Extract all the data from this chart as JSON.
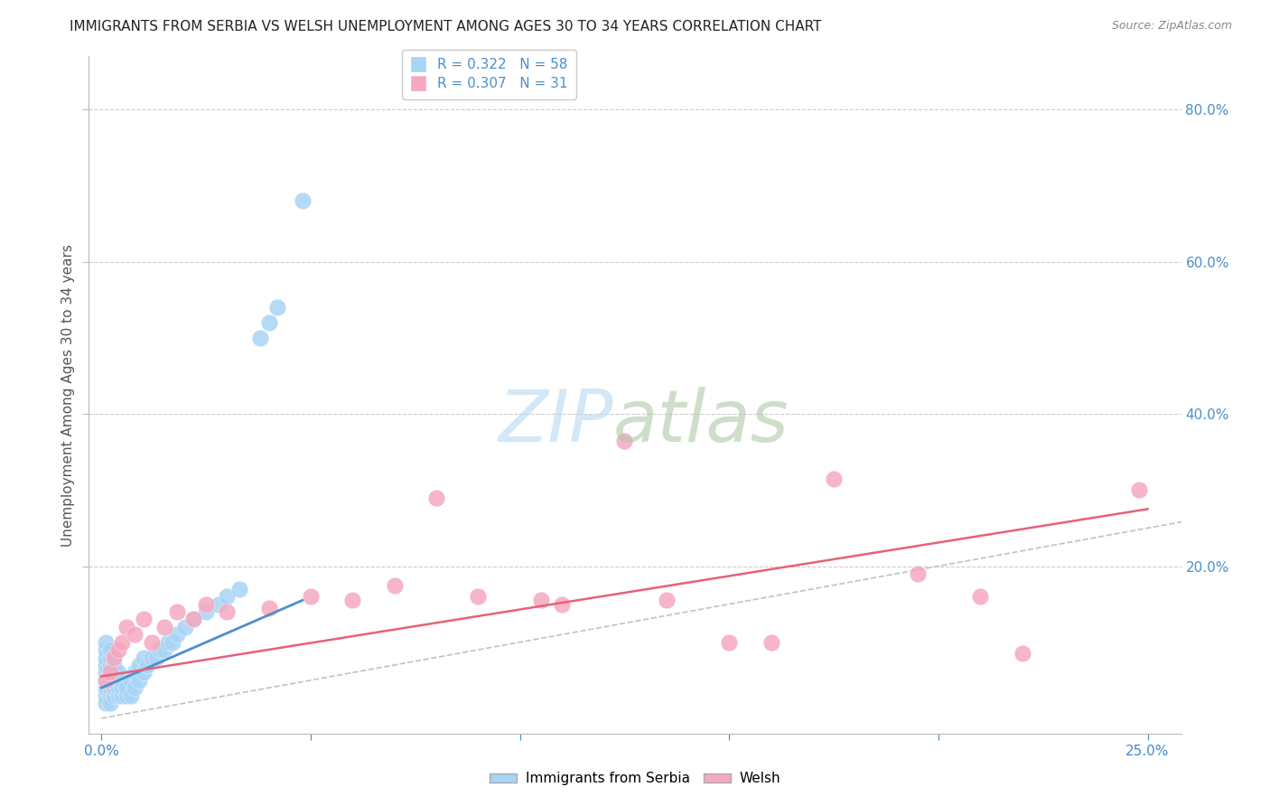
{
  "title": "IMMIGRANTS FROM SERBIA VS WELSH UNEMPLOYMENT AMONG AGES 30 TO 34 YEARS CORRELATION CHART",
  "source": "Source: ZipAtlas.com",
  "ylabel": "Unemployment Among Ages 30 to 34 years",
  "xlim": [
    0.0,
    0.25
  ],
  "ylim": [
    0.0,
    0.85
  ],
  "xticks": [
    0.0,
    0.05,
    0.1,
    0.15,
    0.2,
    0.25
  ],
  "yticks": [
    0.2,
    0.4,
    0.6,
    0.8
  ],
  "serbia_R": 0.322,
  "serbia_N": 58,
  "welsh_R": 0.307,
  "welsh_N": 31,
  "serbia_color": "#a8d4f5",
  "welsh_color": "#f5a8c0",
  "serbia_line_color": "#4b8fcc",
  "welsh_line_color": "#e8607a",
  "diagonal_color": "#bbbbbb",
  "serbia_points_x": [
    0.001,
    0.001,
    0.001,
    0.001,
    0.001,
    0.001,
    0.001,
    0.001,
    0.001,
    0.002,
    0.002,
    0.002,
    0.002,
    0.002,
    0.002,
    0.002,
    0.002,
    0.003,
    0.003,
    0.003,
    0.003,
    0.003,
    0.003,
    0.004,
    0.004,
    0.004,
    0.004,
    0.005,
    0.005,
    0.005,
    0.006,
    0.006,
    0.007,
    0.007,
    0.008,
    0.008,
    0.009,
    0.009,
    0.01,
    0.01,
    0.011,
    0.012,
    0.013,
    0.014,
    0.015,
    0.016,
    0.017,
    0.018,
    0.02,
    0.022,
    0.025,
    0.028,
    0.03,
    0.033,
    0.038,
    0.04,
    0.042,
    0.048
  ],
  "serbia_points_y": [
    0.03,
    0.04,
    0.05,
    0.06,
    0.07,
    0.08,
    0.09,
    0.1,
    0.02,
    0.03,
    0.04,
    0.05,
    0.06,
    0.07,
    0.08,
    0.09,
    0.02,
    0.03,
    0.04,
    0.05,
    0.06,
    0.07,
    0.08,
    0.03,
    0.04,
    0.05,
    0.06,
    0.03,
    0.04,
    0.05,
    0.03,
    0.04,
    0.03,
    0.05,
    0.04,
    0.06,
    0.05,
    0.07,
    0.06,
    0.08,
    0.07,
    0.08,
    0.08,
    0.09,
    0.09,
    0.1,
    0.1,
    0.11,
    0.12,
    0.13,
    0.14,
    0.15,
    0.16,
    0.17,
    0.5,
    0.52,
    0.54,
    0.68
  ],
  "welsh_points_x": [
    0.001,
    0.002,
    0.003,
    0.004,
    0.005,
    0.006,
    0.008,
    0.01,
    0.012,
    0.015,
    0.018,
    0.022,
    0.025,
    0.03,
    0.04,
    0.05,
    0.06,
    0.07,
    0.08,
    0.09,
    0.105,
    0.11,
    0.125,
    0.135,
    0.15,
    0.16,
    0.175,
    0.195,
    0.21,
    0.22,
    0.248
  ],
  "welsh_points_y": [
    0.05,
    0.06,
    0.08,
    0.09,
    0.1,
    0.12,
    0.11,
    0.13,
    0.1,
    0.12,
    0.14,
    0.13,
    0.15,
    0.14,
    0.145,
    0.16,
    0.155,
    0.175,
    0.29,
    0.16,
    0.155,
    0.15,
    0.365,
    0.155,
    0.1,
    0.1,
    0.315,
    0.19,
    0.16,
    0.085,
    0.3
  ],
  "title_fontsize": 11,
  "axis_label_fontsize": 11,
  "tick_fontsize": 11,
  "legend_fontsize": 11
}
